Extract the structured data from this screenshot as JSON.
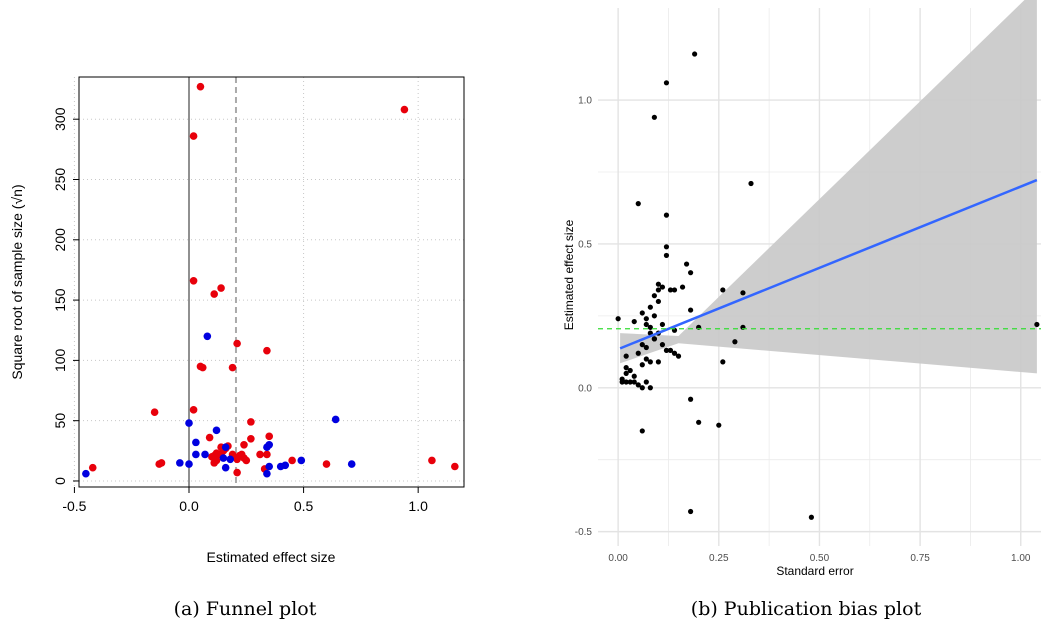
{
  "chart_data": [
    {
      "type": "scatter",
      "caption": "(a) Funnel plot",
      "xlabel": "Estimated effect size",
      "ylabel": "Square root of sample size (√n)",
      "xlim": [
        -0.48,
        1.2
      ],
      "ylim": [
        -5,
        335
      ],
      "xticks": [
        -0.5,
        0.0,
        0.5,
        1.0
      ],
      "xtick_labels": [
        "-0.5",
        "0.0",
        "0.5",
        "1.0"
      ],
      "yticks": [
        0,
        50,
        100,
        150,
        200,
        250,
        300
      ],
      "ytick_labels": [
        "0",
        "50",
        "100",
        "150",
        "200",
        "250",
        "300"
      ],
      "grid": "dotted",
      "reference_lines": [
        {
          "x": 0.0,
          "style": "solid"
        },
        {
          "x": 0.205,
          "style": "dashed"
        }
      ],
      "colors": {
        "series_red": "#e8000b",
        "series_blue": "#0000e0",
        "grid": "#c8c8c8",
        "ref_dashed": "#aaaaaa"
      },
      "series": [
        {
          "color": "#e8000b",
          "points": [
            [
              0.05,
              327
            ],
            [
              0.94,
              308
            ],
            [
              0.02,
              286
            ],
            [
              0.02,
              166
            ],
            [
              0.14,
              160
            ],
            [
              0.11,
              155
            ],
            [
              0.21,
              114
            ],
            [
              0.34,
              108
            ],
            [
              0.05,
              95
            ],
            [
              0.06,
              94
            ],
            [
              0.19,
              94
            ],
            [
              -0.15,
              57
            ],
            [
              0.02,
              59
            ],
            [
              0.27,
              49
            ],
            [
              0.35,
              37
            ],
            [
              0.09,
              36
            ],
            [
              0.27,
              35
            ],
            [
              0.24,
              30
            ],
            [
              0.17,
              29
            ],
            [
              0.14,
              28
            ],
            [
              0.15,
              25
            ],
            [
              0.16,
              27
            ],
            [
              0.12,
              23
            ],
            [
              0.13,
              22
            ],
            [
              0.11,
              21
            ],
            [
              0.19,
              22
            ],
            [
              0.22,
              21
            ],
            [
              0.23,
              22
            ],
            [
              0.31,
              22
            ],
            [
              0.34,
              22
            ],
            [
              0.24,
              19
            ],
            [
              0.1,
              20
            ],
            [
              0.12,
              17
            ],
            [
              0.11,
              15
            ],
            [
              0.21,
              18
            ],
            [
              0.25,
              17
            ],
            [
              0.45,
              17
            ],
            [
              -0.12,
              15
            ],
            [
              -0.13,
              14
            ],
            [
              0.6,
              14
            ],
            [
              1.06,
              17
            ],
            [
              1.16,
              12
            ],
            [
              -0.42,
              11
            ],
            [
              0.33,
              10
            ],
            [
              0.21,
              7
            ]
          ]
        },
        {
          "color": "#0000e0",
          "points": [
            [
              0.08,
              120
            ],
            [
              0.64,
              51
            ],
            [
              0.0,
              48
            ],
            [
              0.12,
              42
            ],
            [
              0.03,
              32
            ],
            [
              0.35,
              30
            ],
            [
              0.16,
              28
            ],
            [
              0.34,
              28
            ],
            [
              0.07,
              22
            ],
            [
              0.03,
              22
            ],
            [
              0.15,
              19
            ],
            [
              -0.04,
              15
            ],
            [
              0.0,
              14
            ],
            [
              0.18,
              18
            ],
            [
              0.49,
              17
            ],
            [
              0.42,
              13
            ],
            [
              0.71,
              14
            ],
            [
              0.35,
              12
            ],
            [
              0.4,
              12
            ],
            [
              0.16,
              11
            ],
            [
              -0.45,
              6
            ],
            [
              0.34,
              6
            ]
          ]
        }
      ]
    },
    {
      "type": "scatter",
      "caption": "(b) Publication bias plot",
      "xlabel": "Standard error",
      "ylabel": "Estimated effect size",
      "xlim": [
        -0.05,
        1.09
      ],
      "ylim": [
        -0.55,
        1.32
      ],
      "xticks": [
        0.0,
        0.25,
        0.5,
        0.75,
        1.0
      ],
      "xtick_labels": [
        "0.00",
        "0.25",
        "0.50",
        "0.75",
        "1.00"
      ],
      "yticks": [
        -0.5,
        0.0,
        0.5,
        1.0
      ],
      "ytick_labels": [
        "-0.5",
        "0.0",
        "0.5",
        "1.0"
      ],
      "grid": "on",
      "fit_line": {
        "x": [
          0.005,
          1.04
        ],
        "y": [
          0.137,
          0.722
        ],
        "color": "#3366ff"
      },
      "confidence_band": {
        "x": [
          0.005,
          0.15,
          1.04
        ],
        "lower": [
          0.085,
          0.155,
          0.05
        ],
        "upper": [
          0.19,
          0.18,
          1.39
        ],
        "color": "#c8c8c8"
      },
      "reference_line": {
        "y": 0.205,
        "style": "dashed",
        "color": "#33dd33"
      },
      "colors": {
        "points": "#000000",
        "grid": "#ebebeb"
      },
      "points": [
        [
          0.19,
          1.16
        ],
        [
          0.12,
          1.06
        ],
        [
          0.09,
          0.94
        ],
        [
          0.33,
          0.71
        ],
        [
          0.05,
          0.64
        ],
        [
          0.12,
          0.6
        ],
        [
          0.12,
          0.49
        ],
        [
          0.12,
          0.46
        ],
        [
          0.17,
          0.43
        ],
        [
          0.18,
          0.4
        ],
        [
          0.1,
          0.36
        ],
        [
          0.1,
          0.34
        ],
        [
          0.11,
          0.35
        ],
        [
          0.13,
          0.34
        ],
        [
          0.14,
          0.34
        ],
        [
          0.16,
          0.35
        ],
        [
          0.26,
          0.34
        ],
        [
          0.31,
          0.33
        ],
        [
          0.09,
          0.32
        ],
        [
          0.1,
          0.3
        ],
        [
          0.08,
          0.28
        ],
        [
          0.18,
          0.27
        ],
        [
          0.06,
          0.26
        ],
        [
          0.07,
          0.24
        ],
        [
          0.0,
          0.24
        ],
        [
          0.09,
          0.25
        ],
        [
          0.04,
          0.23
        ],
        [
          0.07,
          0.22
        ],
        [
          0.08,
          0.21
        ],
        [
          0.11,
          0.22
        ],
        [
          0.14,
          0.2
        ],
        [
          0.08,
          0.19
        ],
        [
          0.1,
          0.19
        ],
        [
          0.2,
          0.21
        ],
        [
          0.31,
          0.21
        ],
        [
          1.04,
          0.22
        ],
        [
          0.09,
          0.17
        ],
        [
          0.06,
          0.15
        ],
        [
          0.07,
          0.14
        ],
        [
          0.09,
          0.17
        ],
        [
          0.11,
          0.15
        ],
        [
          0.12,
          0.13
        ],
        [
          0.13,
          0.13
        ],
        [
          0.14,
          0.12
        ],
        [
          0.15,
          0.11
        ],
        [
          0.29,
          0.16
        ],
        [
          0.02,
          0.11
        ],
        [
          0.05,
          0.12
        ],
        [
          0.07,
          0.1
        ],
        [
          0.08,
          0.09
        ],
        [
          0.02,
          0.07
        ],
        [
          0.03,
          0.06
        ],
        [
          0.06,
          0.08
        ],
        [
          0.1,
          0.09
        ],
        [
          0.26,
          0.09
        ],
        [
          0.02,
          0.05
        ],
        [
          0.04,
          0.04
        ],
        [
          0.01,
          0.03
        ],
        [
          0.01,
          0.02
        ],
        [
          0.02,
          0.02
        ],
        [
          0.03,
          0.02
        ],
        [
          0.04,
          0.02
        ],
        [
          0.05,
          0.01
        ],
        [
          0.07,
          0.02
        ],
        [
          0.08,
          0.0
        ],
        [
          0.06,
          0.0
        ],
        [
          0.18,
          -0.04
        ],
        [
          0.06,
          -0.15
        ],
        [
          0.2,
          -0.12
        ],
        [
          0.25,
          -0.13
        ],
        [
          0.18,
          -0.43
        ],
        [
          0.48,
          -0.45
        ]
      ]
    }
  ]
}
